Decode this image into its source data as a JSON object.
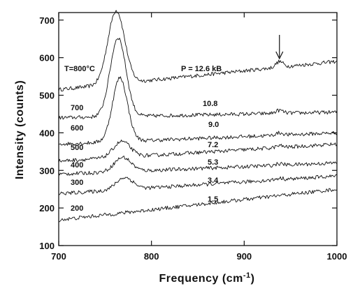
{
  "chart_data": {
    "type": "line",
    "title": "",
    "xlabel": "Frequency (cm",
    "xlabel_superscript": "-1",
    "xlabel_suffix": ")",
    "ylabel": "Intensity (counts)",
    "xlim": [
      700,
      1000
    ],
    "ylim": [
      100,
      720
    ],
    "xticks": [
      "700",
      "800",
      "900",
      "1000"
    ],
    "yticks": [
      "100",
      "200",
      "300",
      "400",
      "500",
      "600",
      "700"
    ],
    "grid": false,
    "legend": "none",
    "arrow_at_x": 938,
    "temperature_header": "T=800°C",
    "pressure_header": "P = 12.6 kB",
    "series": [
      {
        "temperature_label": "",
        "pressure_label": "",
        "baseline_start": 515,
        "baseline_end": 590,
        "peak_height": 195,
        "peak_center": 762,
        "peak_width": 9,
        "small_peak": 15
      },
      {
        "temperature_label": "700",
        "pressure_label": "10.8",
        "baseline_start": 440,
        "baseline_end": 455,
        "peak_height": 210,
        "peak_center": 764,
        "peak_width": 8.5,
        "small_peak": 8
      },
      {
        "temperature_label": "600",
        "pressure_label": "9.0",
        "baseline_start": 370,
        "baseline_end": 400,
        "peak_height": 170,
        "peak_center": 766,
        "peak_width": 8,
        "small_peak": 6
      },
      {
        "temperature_label": "500",
        "pressure_label": "7.2",
        "baseline_start": 325,
        "baseline_end": 370,
        "peak_height": 42,
        "peak_center": 768,
        "peak_width": 9,
        "small_peak": 5
      },
      {
        "temperature_label": "400",
        "pressure_label": "5.3",
        "baseline_start": 290,
        "baseline_end": 320,
        "peak_height": 38,
        "peak_center": 769,
        "peak_width": 9,
        "small_peak": 4
      },
      {
        "temperature_label": "300",
        "pressure_label": "3.4",
        "baseline_start": 238,
        "baseline_end": 285,
        "peak_height": 32,
        "peak_center": 771,
        "peak_width": 9,
        "small_peak": 4
      },
      {
        "temperature_label": "200",
        "pressure_label": "1.5",
        "baseline_start": 168,
        "baseline_end": 250,
        "peak_height": 0,
        "peak_center": 771,
        "peak_width": 9,
        "small_peak": 0
      }
    ]
  }
}
